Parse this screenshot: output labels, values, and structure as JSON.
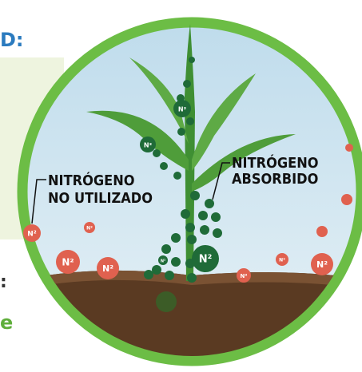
{
  "header": {
    "title": "D:"
  },
  "labels": {
    "unused": {
      "line1": "NITRÓGENO",
      "line2": "NO UTILIZADO"
    },
    "absorbed": {
      "line1": "NITRÓGENO",
      "line2": "ABSORBIDO"
    }
  },
  "molecule": "N²",
  "side_text": {
    "colon": ":",
    "letter": "e"
  }
}
